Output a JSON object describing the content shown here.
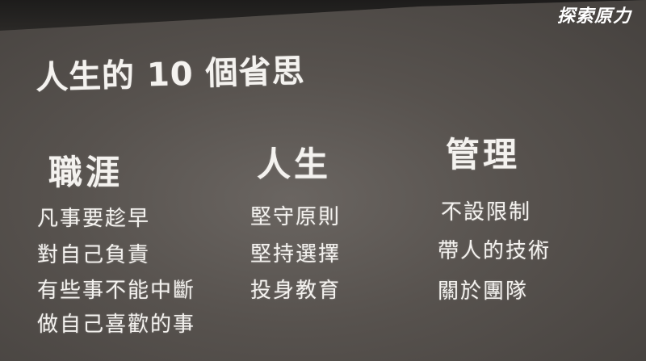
{
  "logo": {
    "text": "探索原力"
  },
  "slide": {
    "title": "人生的 10 個省思",
    "columns": [
      {
        "heading": "職涯",
        "items": [
          "凡事要趁早",
          "對自己負責",
          "有些事不能中斷",
          "做自己喜歡的事"
        ]
      },
      {
        "heading": "人生",
        "items": [
          "堅守原則",
          "堅持選擇",
          "投身教育"
        ]
      },
      {
        "heading": "管理",
        "items": [
          "不設限制",
          "帶人的技術",
          "關於團隊"
        ]
      }
    ]
  },
  "colors": {
    "screen": "#57524e",
    "text": "#f4f2ef",
    "surround": "#2a2826"
  }
}
